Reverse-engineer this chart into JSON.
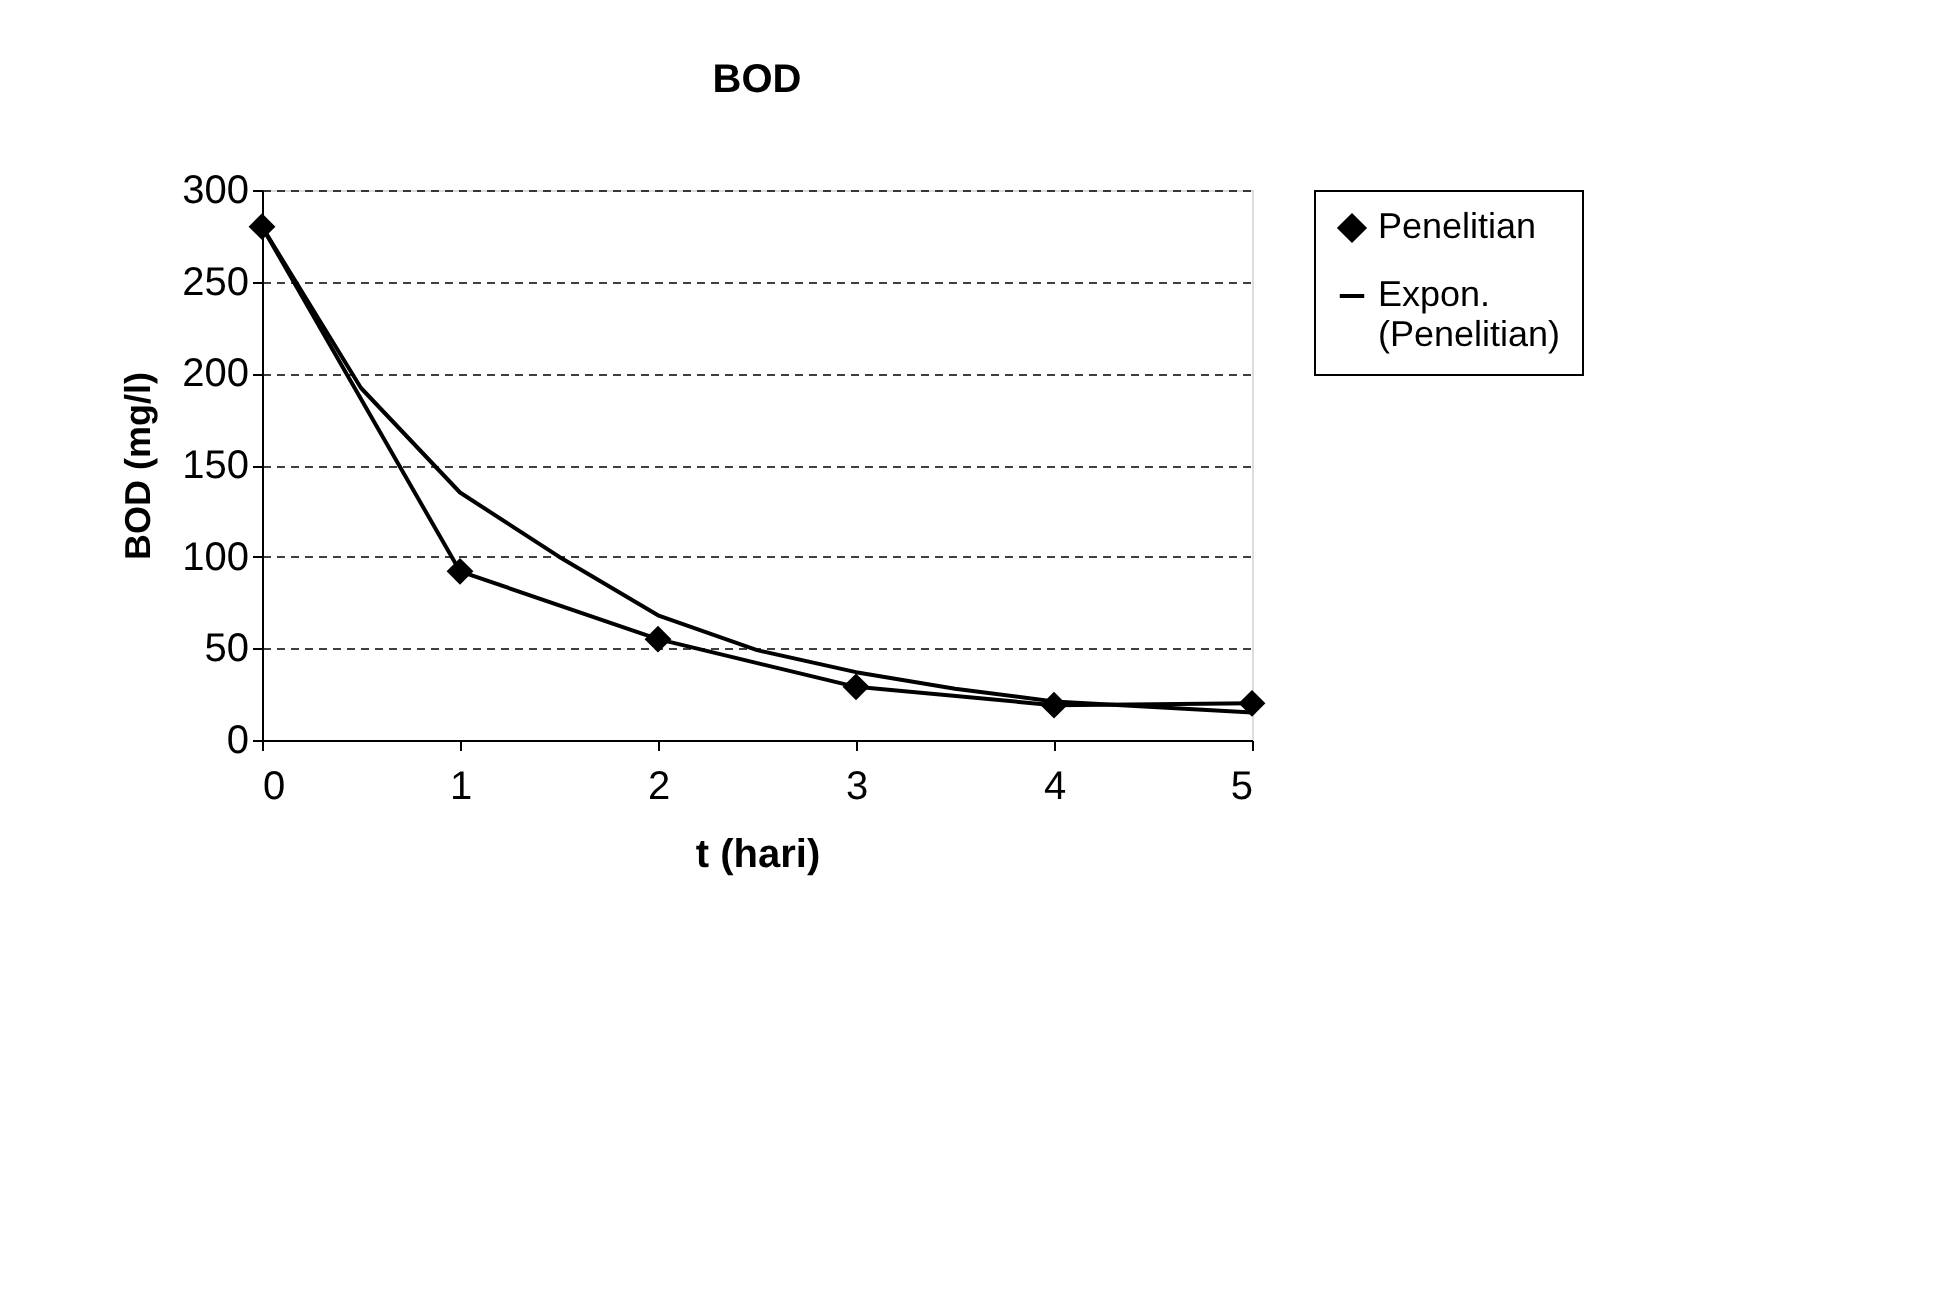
{
  "chart_data": {
    "type": "line",
    "title": "BOD",
    "xlabel": "t (hari)",
    "ylabel": "BOD (mg/l)",
    "x": [
      0,
      1,
      2,
      3,
      4,
      5
    ],
    "xlim": [
      0,
      5
    ],
    "xticks": [
      0,
      1,
      2,
      3,
      4,
      5
    ],
    "ylim": [
      0,
      300
    ],
    "yticks": [
      0,
      50,
      100,
      150,
      200,
      250,
      300
    ],
    "grid": "y",
    "legend": "right",
    "series": [
      {
        "name": "Penelitian",
        "color": "#000000",
        "marker": "diamond",
        "values": [
          280,
          92,
          55,
          29,
          19,
          20
        ]
      },
      {
        "name": "Expon. (Penelitian)",
        "color": "#000000",
        "marker": "none",
        "x": [
          0,
          0.5,
          1,
          1.5,
          2,
          2.5,
          3,
          3.5,
          4,
          4.5,
          5
        ],
        "values": [
          280,
          192,
          135,
          100,
          68,
          49,
          37,
          28,
          21,
          18,
          15
        ]
      }
    ]
  }
}
